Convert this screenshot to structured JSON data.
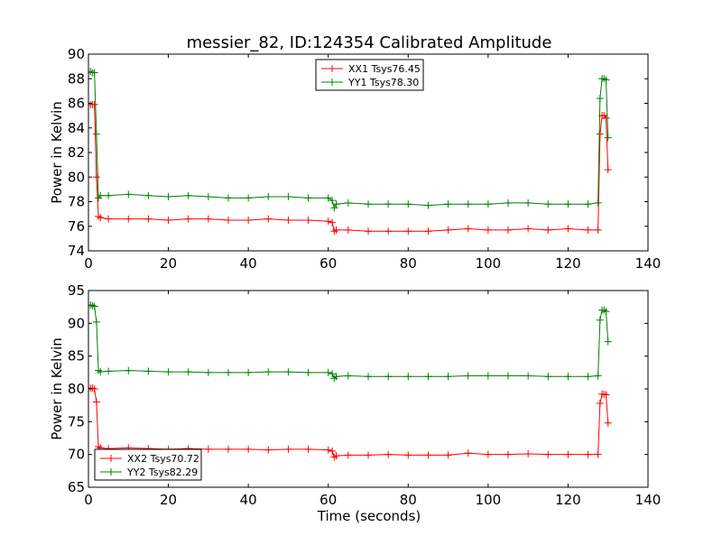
{
  "chart_data": [
    {
      "type": "line",
      "title": "messier_82, ID:124354 Calibrated Amplitude",
      "xlabel": "",
      "ylabel": "Power in Kelvin",
      "xlim": [
        0,
        140
      ],
      "ylim": [
        74,
        90
      ],
      "xticks": [
        "0",
        "20",
        "40",
        "60",
        "80",
        "100",
        "120",
        "140"
      ],
      "yticks": [
        "74",
        "76",
        "78",
        "80",
        "82",
        "84",
        "86",
        "88",
        "90"
      ],
      "legend_position": "upper-center",
      "grid": false,
      "series": [
        {
          "name": "XX1 Tsys76.45",
          "color": "#ff0000",
          "x": [
            0.5,
            1,
            1.5,
            2,
            2.5,
            3,
            5,
            10,
            15,
            20,
            25,
            30,
            35,
            40,
            45,
            50,
            55,
            60,
            61,
            61.5,
            62,
            65,
            70,
            75,
            80,
            85,
            90,
            95,
            100,
            105,
            110,
            115,
            120,
            125,
            127.5,
            128,
            128.5,
            129,
            129.5,
            130
          ],
          "y": [
            85.9,
            85.9,
            85.9,
            80.0,
            76.8,
            76.7,
            76.6,
            76.6,
            76.6,
            76.5,
            76.6,
            76.6,
            76.5,
            76.5,
            76.6,
            76.5,
            76.5,
            76.4,
            76.3,
            75.6,
            75.7,
            75.7,
            75.6,
            75.6,
            75.6,
            75.6,
            75.7,
            75.8,
            75.7,
            75.7,
            75.8,
            75.7,
            75.8,
            75.7,
            75.7,
            83.5,
            85.0,
            85.0,
            84.8,
            80.6
          ]
        },
        {
          "name": "YY1 Tsys78.30",
          "color": "#008000",
          "x": [
            0.5,
            1,
            1.5,
            2,
            2.5,
            3,
            5,
            10,
            15,
            20,
            25,
            30,
            35,
            40,
            45,
            50,
            55,
            60,
            61,
            61.5,
            62,
            65,
            70,
            75,
            80,
            85,
            90,
            95,
            100,
            105,
            110,
            115,
            120,
            125,
            127.5,
            128,
            128.5,
            129,
            129.5,
            130
          ],
          "y": [
            88.6,
            88.5,
            88.5,
            83.5,
            78.3,
            78.5,
            78.5,
            78.6,
            78.5,
            78.4,
            78.5,
            78.4,
            78.3,
            78.3,
            78.4,
            78.4,
            78.3,
            78.3,
            78.1,
            77.5,
            77.8,
            77.9,
            77.8,
            77.8,
            77.8,
            77.7,
            77.8,
            77.8,
            77.8,
            77.9,
            77.9,
            77.8,
            77.8,
            77.8,
            77.9,
            86.4,
            88.0,
            88.0,
            87.9,
            83.2
          ]
        }
      ]
    },
    {
      "type": "line",
      "title": "",
      "xlabel": "Time (seconds)",
      "ylabel": "Power in Kelvin",
      "xlim": [
        0,
        140
      ],
      "ylim": [
        65,
        95
      ],
      "xticks": [
        "0",
        "20",
        "40",
        "60",
        "80",
        "100",
        "120",
        "140"
      ],
      "yticks": [
        "65",
        "70",
        "75",
        "80",
        "85",
        "90",
        "95"
      ],
      "legend_position": "lower-left",
      "grid": false,
      "series": [
        {
          "name": "XX2 Tsys70.72",
          "color": "#ff0000",
          "x": [
            0.5,
            1,
            1.5,
            2,
            2.5,
            3,
            5,
            10,
            15,
            20,
            25,
            30,
            35,
            40,
            45,
            50,
            55,
            60,
            61,
            61.5,
            62,
            65,
            70,
            75,
            80,
            85,
            90,
            95,
            100,
            105,
            110,
            115,
            120,
            125,
            127.5,
            128,
            128.5,
            129,
            129.5,
            130
          ],
          "y": [
            80.1,
            80.1,
            80.0,
            78.0,
            71.2,
            71.0,
            70.9,
            71.0,
            70.9,
            70.8,
            70.9,
            70.8,
            70.8,
            70.8,
            70.7,
            70.8,
            70.8,
            70.7,
            70.5,
            69.6,
            69.8,
            69.9,
            69.9,
            70.0,
            69.9,
            69.9,
            69.9,
            70.2,
            70.0,
            70.0,
            70.1,
            70.0,
            70.0,
            70.0,
            70.0,
            77.8,
            79.2,
            79.2,
            79.1,
            74.8
          ]
        },
        {
          "name": "YY2 Tsys82.29",
          "color": "#008000",
          "x": [
            0.5,
            1,
            1.5,
            2,
            2.5,
            3,
            5,
            10,
            15,
            20,
            25,
            30,
            35,
            40,
            45,
            50,
            55,
            60,
            61,
            61.5,
            62,
            65,
            70,
            75,
            80,
            85,
            90,
            95,
            100,
            105,
            110,
            115,
            120,
            125,
            127.5,
            128,
            128.5,
            129,
            129.5,
            130
          ],
          "y": [
            92.8,
            92.7,
            92.6,
            90.2,
            82.8,
            82.6,
            82.7,
            82.8,
            82.7,
            82.6,
            82.6,
            82.5,
            82.5,
            82.5,
            82.6,
            82.6,
            82.5,
            82.5,
            82.3,
            81.6,
            81.9,
            82.0,
            81.9,
            81.9,
            81.9,
            81.9,
            81.9,
            82.0,
            82.0,
            82.0,
            82.0,
            81.9,
            81.9,
            81.9,
            82.0,
            90.5,
            92.0,
            92.0,
            91.8,
            87.2
          ]
        }
      ]
    }
  ]
}
